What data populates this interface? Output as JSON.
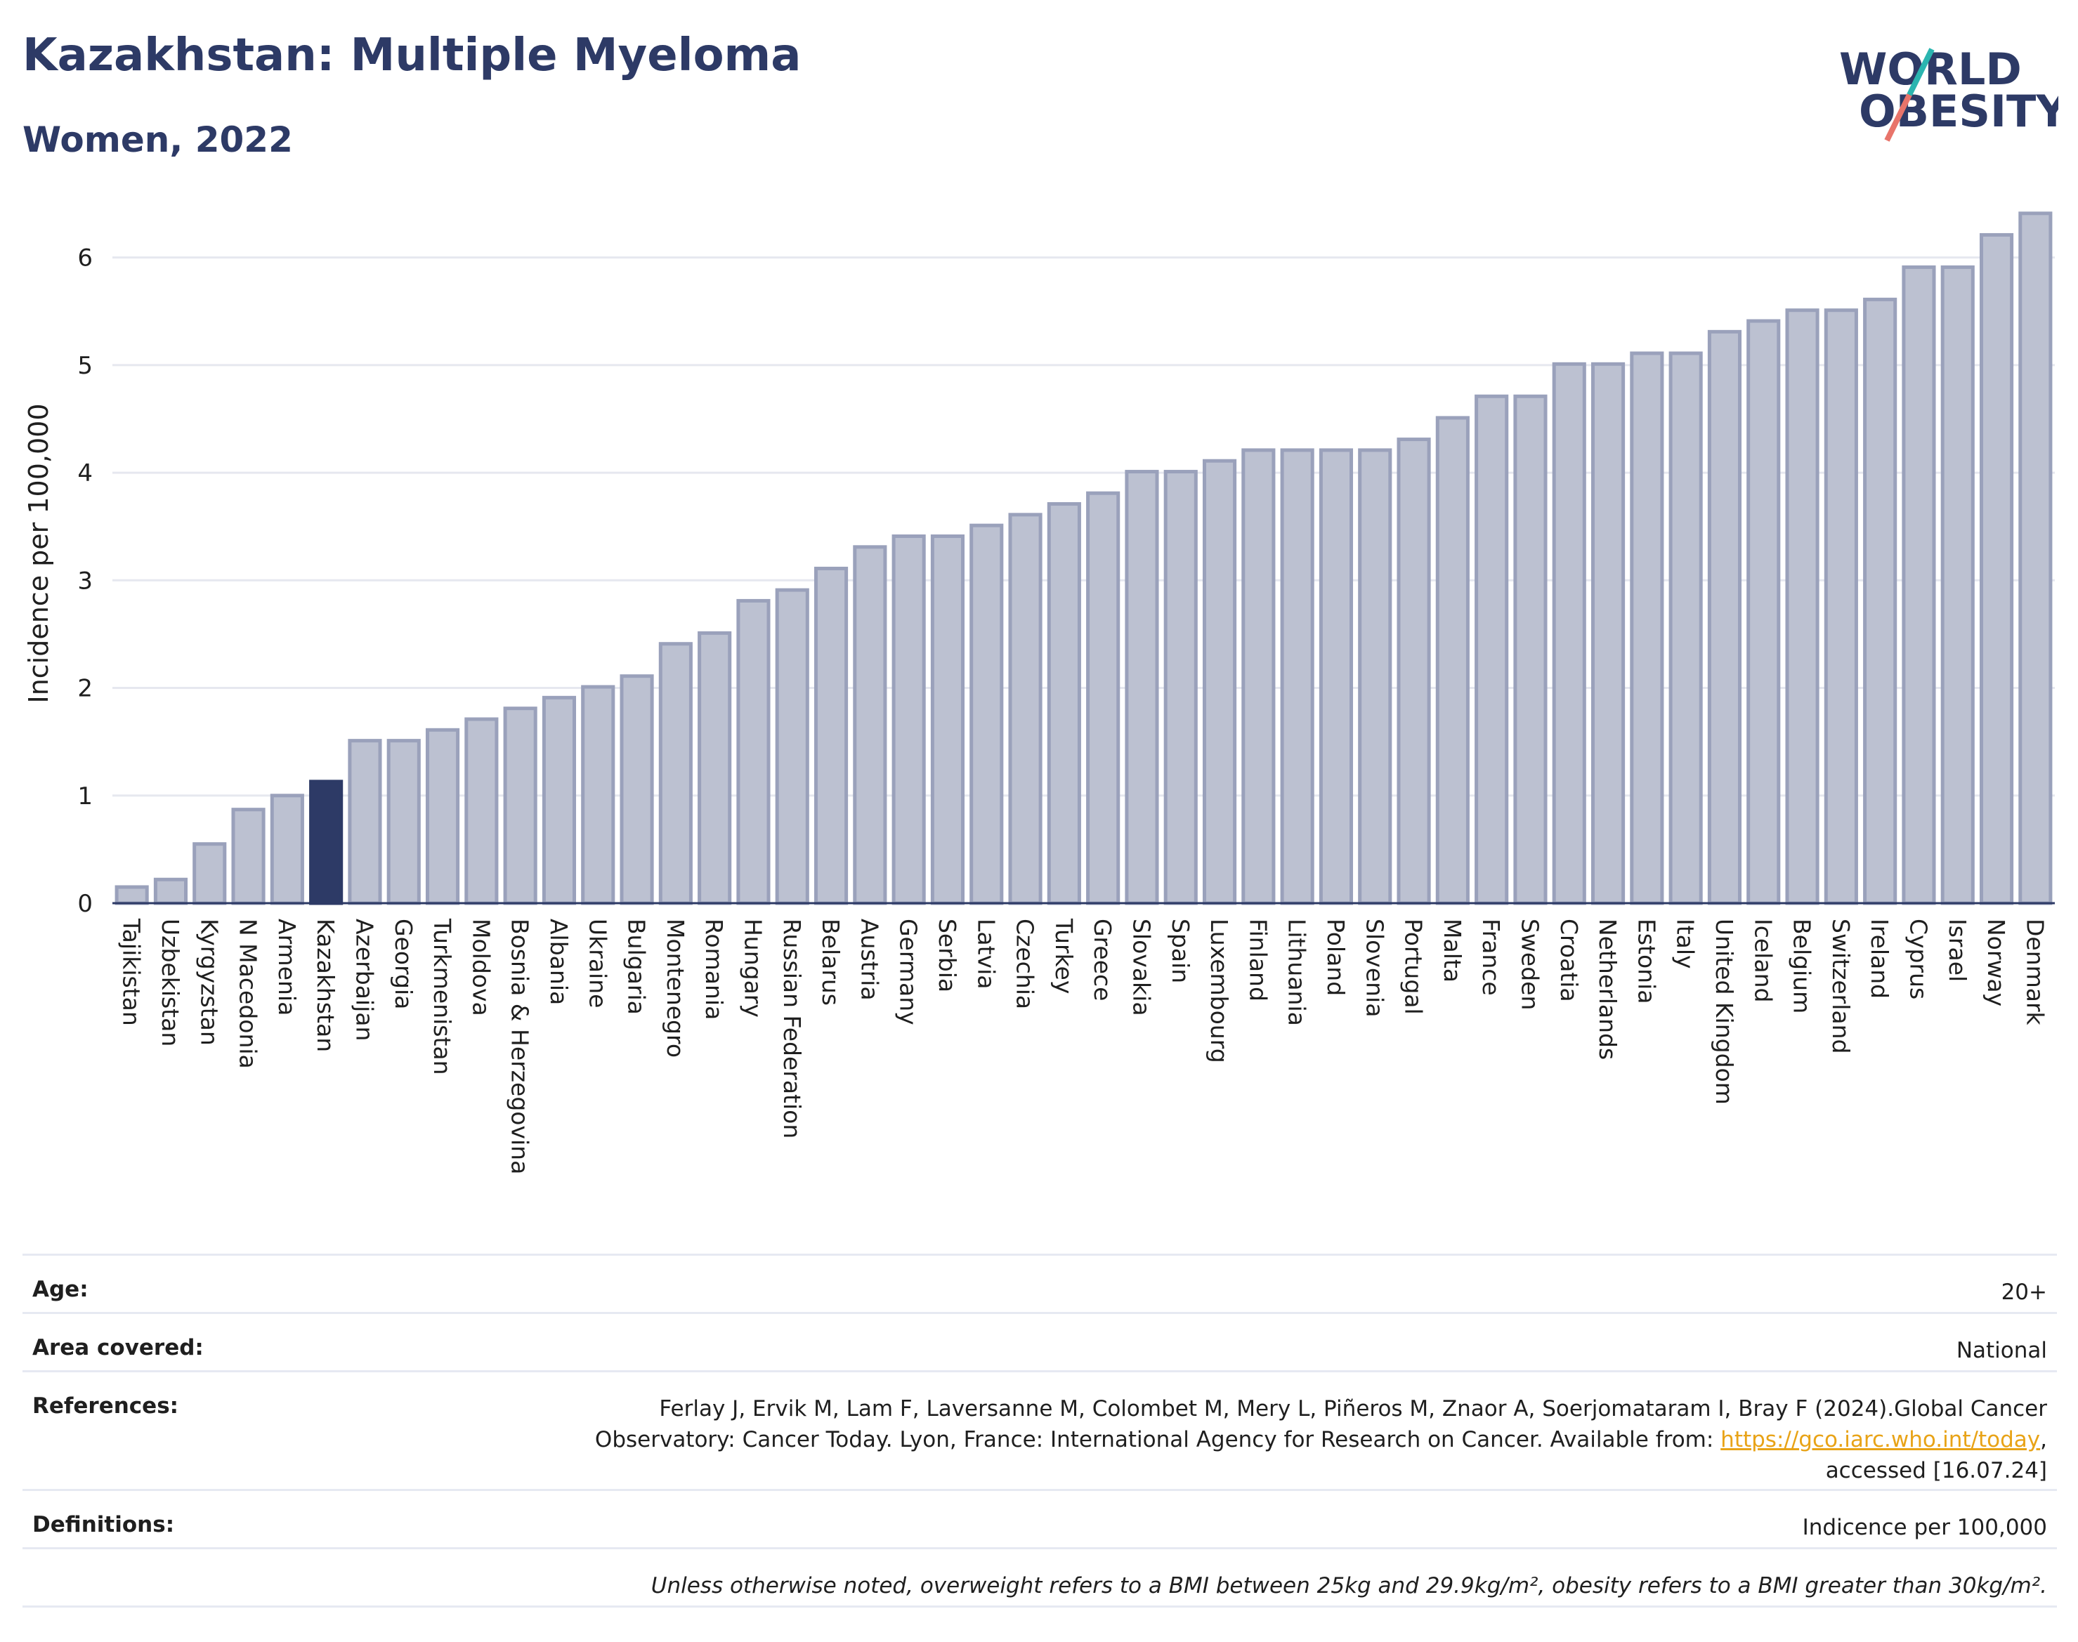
{
  "header": {
    "title": "Kazakhstan: Multiple Myeloma",
    "subtitle": "Women, 2022",
    "logo_line1": "WORLD",
    "logo_line2": "OBESITY"
  },
  "colors": {
    "highlight": "#2d3a66",
    "bar": "#bcc1d1",
    "bar_border": "#9aa1bb",
    "accent_teal": "#2bb5b0",
    "accent_coral": "#e8746a"
  },
  "chart_data": {
    "type": "bar",
    "title": "Kazakhstan: Multiple Myeloma",
    "subtitle": "Women, 2022",
    "xlabel": "",
    "ylabel": "Incidence per 100,000",
    "ylim": [
      0,
      6.5
    ],
    "yticks": [
      0,
      1,
      2,
      3,
      4,
      5,
      6
    ],
    "grid": true,
    "highlight": "Kazakhstan",
    "categories": [
      "Tajikistan",
      "Uzbekistan",
      "Kyrgyzstan",
      "N Macedonia",
      "Armenia",
      "Kazakhstan",
      "Azerbaijan",
      "Georgia",
      "Turkmenistan",
      "Moldova",
      "Bosnia & Herzegovina",
      "Albania",
      "Ukraine",
      "Bulgaria",
      "Montenegro",
      "Romania",
      "Hungary",
      "Russian Federation",
      "Belarus",
      "Austria",
      "Germany",
      "Serbia",
      "Latvia",
      "Czechia",
      "Turkey",
      "Greece",
      "Slovakia",
      "Spain",
      "Luxembourg",
      "Finland",
      "Lithuania",
      "Poland",
      "Slovenia",
      "Portugal",
      "Malta",
      "France",
      "Sweden",
      "Croatia",
      "Netherlands",
      "Estonia",
      "Italy",
      "United Kingdom",
      "Iceland",
      "Belgium",
      "Switzerland",
      "Ireland",
      "Cyprus",
      "Israel",
      "Norway",
      "Denmark"
    ],
    "values": [
      0.15,
      0.22,
      0.55,
      0.87,
      1.0,
      1.13,
      1.51,
      1.51,
      1.61,
      1.71,
      1.81,
      1.91,
      2.01,
      2.11,
      2.41,
      2.51,
      2.81,
      2.91,
      3.11,
      3.31,
      3.41,
      3.41,
      3.51,
      3.61,
      3.71,
      3.81,
      4.01,
      4.01,
      4.11,
      4.21,
      4.21,
      4.21,
      4.21,
      4.31,
      4.51,
      4.71,
      4.71,
      5.01,
      5.01,
      5.11,
      5.11,
      5.31,
      5.41,
      5.51,
      5.51,
      5.61,
      5.91,
      5.91,
      6.21,
      6.41
    ]
  },
  "info": {
    "age_label": "Age:",
    "age_value": "20+",
    "area_label": "Area covered:",
    "area_value": "National",
    "references_label": "References:",
    "references_line1": "Ferlay J, Ervik M, Lam F, Laversanne M, Colombet M, Mery L, Piñeros M, Znaor A, Soerjomataram I, Bray F (2024).Global Cancer",
    "references_line2_prefix": "Observatory: Cancer Today. Lyon, France: International Agency for Research on Cancer. Available from: ",
    "references_link": "https://gco.iarc.who.int/today",
    "references_line2_suffix": ",",
    "references_line3": "accessed [16.07.24]",
    "definitions_label": "Definitions:",
    "definitions_value": "Indicence per 100,000",
    "note": "Unless otherwise noted, overweight refers to a BMI between 25kg and 29.9kg/m², obesity refers to a BMI greater than 30kg/m²."
  }
}
